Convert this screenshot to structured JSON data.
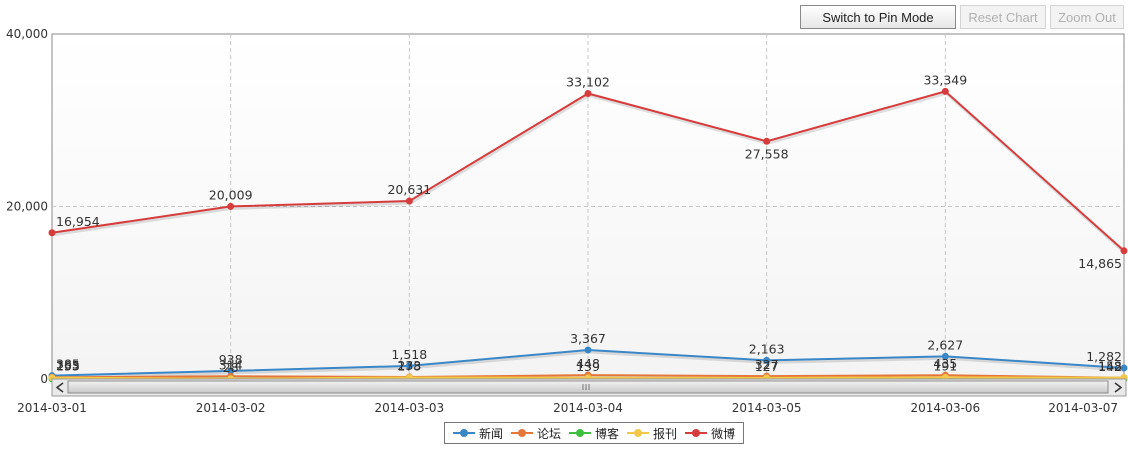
{
  "toolbar": {
    "pin_label": "Switch to Pin Mode",
    "reset_label": "Reset Chart",
    "zoom_label": "Zoom Out"
  },
  "chart_data": {
    "type": "line",
    "categories": [
      "2014-03-01",
      "2014-03-02",
      "2014-03-03",
      "2014-03-04",
      "2014-03-05",
      "2014-03-06",
      "2014-03-07"
    ],
    "ylim": [
      0,
      40000
    ],
    "yticks": [
      0,
      20000,
      40000
    ],
    "ytick_labels": [
      "0",
      "20,000",
      "40,000"
    ],
    "grid": true,
    "legend_position": "bottom-center",
    "series": [
      {
        "name": "新闻",
        "color": "#3a87c8",
        "values": [
          385,
          938,
          1518,
          3367,
          2163,
          2627,
          1282
        ],
        "labels": [
          "385",
          "938",
          "1,518",
          "3,367",
          "2,163",
          "2,627",
          "1,282"
        ]
      },
      {
        "name": "论坛",
        "color": "#e5763a",
        "values": [
          205,
          314,
          233,
          448,
          327,
          435,
          142
        ],
        "labels": [
          "205",
          "314",
          "233",
          "448",
          "327",
          "435",
          "142"
        ]
      },
      {
        "name": "博客",
        "color": "#3fbf3f",
        "values": [
          12,
          26,
          75,
          13,
          10,
          11,
          7
        ],
        "labels": [
          "",
          "",
          "",
          "",
          "",
          "",
          ""
        ]
      },
      {
        "name": "报刊",
        "color": "#f2c84b",
        "values": [
          153,
          28,
          178,
          139,
          127,
          191,
          158
        ],
        "labels": [
          "153",
          "28",
          "178",
          "139",
          "127",
          "191",
          "158"
        ]
      },
      {
        "name": "微博",
        "color": "#d63c3c",
        "values": [
          16954,
          20009,
          20631,
          33102,
          27558,
          33349,
          14865
        ],
        "labels": [
          "16,954",
          "20,009",
          "20,631",
          "33,102",
          "27,558",
          "33,349",
          "14,865"
        ]
      }
    ]
  }
}
